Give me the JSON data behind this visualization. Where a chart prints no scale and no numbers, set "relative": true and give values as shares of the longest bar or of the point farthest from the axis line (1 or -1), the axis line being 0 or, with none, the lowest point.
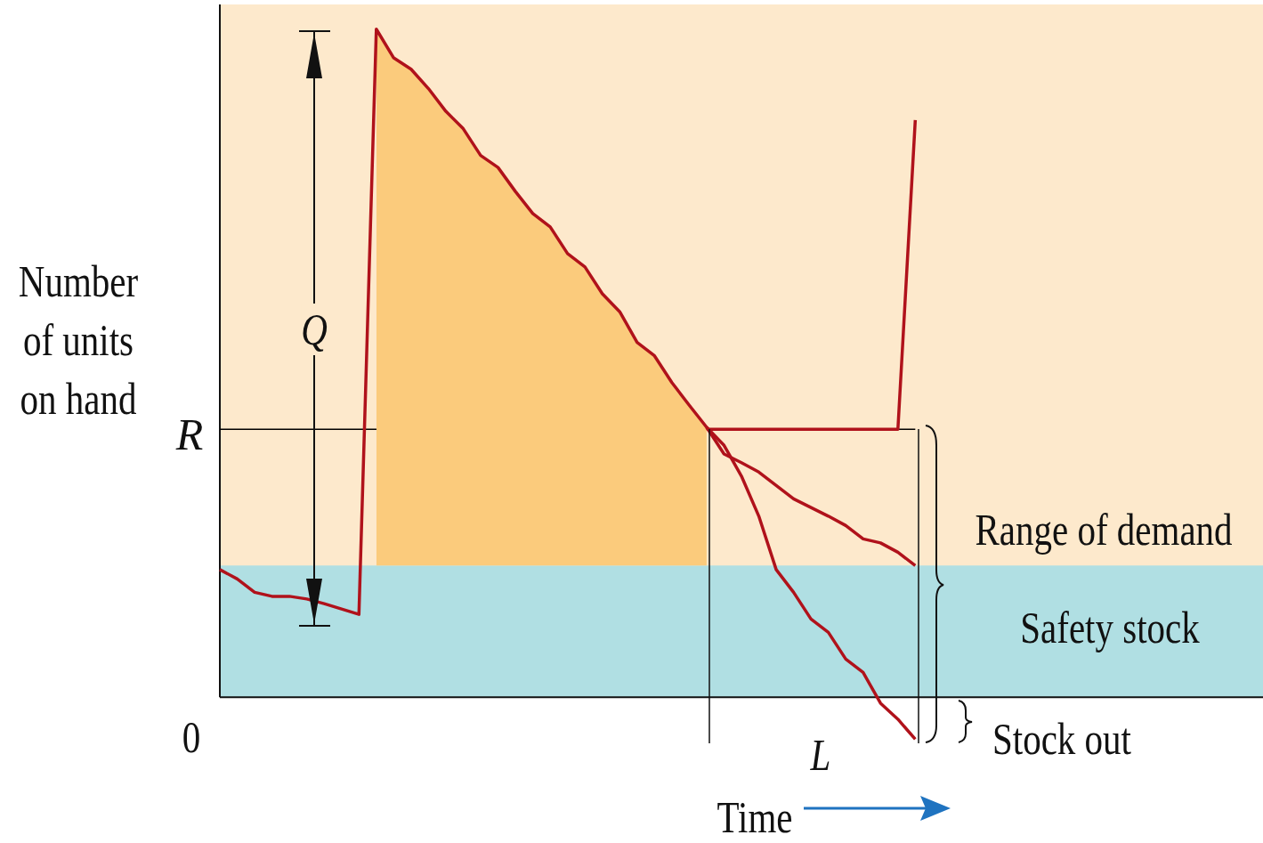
{
  "chart_data": {
    "type": "line",
    "relative": true,
    "tick_labels": false,
    "legend": false,
    "xlabel": "Time",
    "ylabel": "Number of units on hand",
    "categories": [
      null,
      null,
      null,
      null,
      null,
      null,
      null,
      null,
      null,
      null,
      null,
      null,
      null,
      null,
      null,
      null,
      null,
      null,
      null,
      null,
      null,
      null,
      null,
      null,
      null,
      null,
      null,
      null,
      null,
      null,
      null,
      null,
      null,
      null,
      null,
      null,
      null,
      null,
      null,
      null,
      null,
      null,
      null,
      null,
      null,
      null,
      null,
      null,
      null,
      null,
      null,
      null,
      null,
      null,
      null,
      null,
      null,
      null,
      null,
      null,
      null
    ],
    "series": [
      {
        "type": "area",
        "color": "#fbcb7c",
        "values": [
          null,
          null,
          null,
          null,
          null,
          null,
          null,
          null,
          null,
          1.0,
          0.957,
          0.94,
          0.911,
          0.877,
          0.851,
          0.811,
          0.793,
          0.757,
          0.724,
          0.704,
          0.664,
          0.644,
          0.604,
          0.577,
          0.531,
          0.511,
          0.471,
          0.437,
          0.404,
          null,
          null,
          null,
          null,
          null,
          null,
          null,
          null,
          null,
          null,
          null,
          null,
          null,
          null,
          null,
          null,
          null,
          null,
          null,
          null,
          null,
          null,
          null,
          null,
          null,
          null,
          null,
          null,
          null,
          null,
          null,
          null
        ]
      },
      {
        "color": "#b0121b",
        "values": [
          0.191,
          0.177,
          0.157,
          0.151,
          0.151,
          0.147,
          0.14,
          0.132,
          0.124,
          1.0,
          0.957,
          0.94,
          0.911,
          0.877,
          0.851,
          0.811,
          0.793,
          0.757,
          0.724,
          0.704,
          0.664,
          0.644,
          0.604,
          0.577,
          0.531,
          0.511,
          0.471,
          0.437,
          0.404,
          0.377,
          0.331,
          0.271,
          0.191,
          0.157,
          0.117,
          0.097,
          0.057,
          0.037,
          -0.009,
          -0.033,
          -0.063,
          null,
          null,
          null,
          null,
          null,
          null,
          null,
          null,
          null,
          null,
          null,
          null,
          null,
          null,
          null,
          null,
          null,
          null,
          null,
          null
        ]
      },
      {
        "color": "#b0121b",
        "values": [
          null,
          null,
          null,
          null,
          null,
          null,
          null,
          null,
          null,
          null,
          null,
          null,
          null,
          null,
          null,
          null,
          null,
          null,
          null,
          null,
          null,
          null,
          null,
          null,
          null,
          null,
          null,
          null,
          0.404,
          0.364,
          0.351,
          0.337,
          0.317,
          0.297,
          0.284,
          0.271,
          0.257,
          0.237,
          0.231,
          0.217,
          0.197,
          null,
          null,
          null,
          null,
          null,
          null,
          null,
          null,
          null,
          null,
          null,
          null,
          null,
          null,
          null,
          null,
          null,
          null,
          null,
          null
        ]
      },
      {
        "color": "#b0121b",
        "values": [
          null,
          null,
          null,
          null,
          null,
          null,
          null,
          null,
          null,
          null,
          null,
          null,
          null,
          null,
          null,
          null,
          null,
          null,
          null,
          null,
          null,
          null,
          null,
          null,
          null,
          null,
          null,
          null,
          0.401,
          0.401,
          0.401,
          0.401,
          0.401,
          0.401,
          0.401,
          0.401,
          0.401,
          0.401,
          0.401,
          0.401,
          0.864,
          null,
          null,
          null,
          null,
          null,
          null,
          null,
          null,
          null,
          null,
          null,
          null,
          null,
          null,
          null,
          null,
          null,
          null,
          null,
          null
        ]
      }
    ],
    "bands": [
      {
        "axis": "y",
        "from": 0,
        "to": 0.197,
        "label": "Safety stock",
        "color": "#b0dfe3"
      }
    ],
    "ref_lines": [
      {
        "axis": "y",
        "value": 0.401,
        "label": "R",
        "color": "#000000"
      }
    ],
    "annotations": [
      "Q",
      "L",
      "0",
      "Range of demand",
      "Stock out"
    ]
  }
}
